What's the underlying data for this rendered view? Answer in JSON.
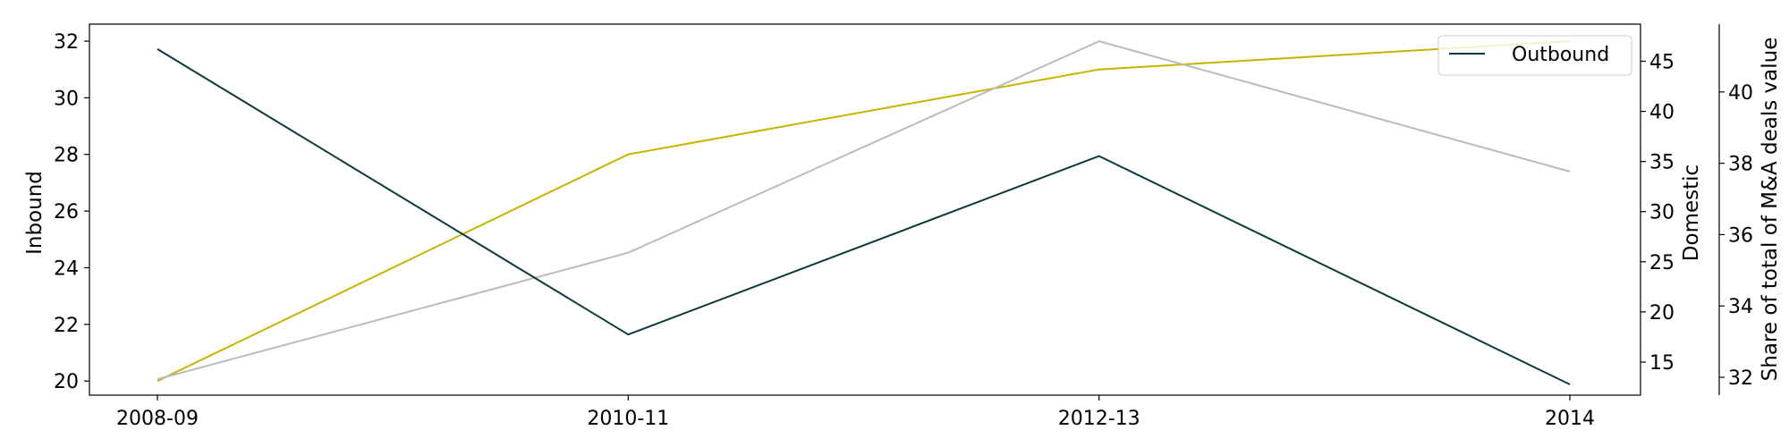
{
  "chart_data": {
    "type": "line",
    "categories": [
      "2008-09",
      "2010-11",
      "2012-13",
      "2014"
    ],
    "series": [
      {
        "name": "Inbound",
        "axis": "left",
        "color": "#c8b400",
        "values": [
          20,
          28,
          31,
          32
        ],
        "in_legend": false
      },
      {
        "name": "Domestic",
        "axis": "right1",
        "color": "#bbbbbb",
        "values": [
          13.3,
          25.9,
          47.0,
          34.0
        ],
        "in_legend": false
      },
      {
        "name": "Outbound",
        "axis": "right2",
        "color": "#0b3b3b",
        "values": [
          41.2,
          33.2,
          38.2,
          31.8
        ],
        "in_legend": true
      }
    ],
    "axes": {
      "left": {
        "label": "Inbound",
        "ylim": [
          19.5,
          32.6
        ],
        "ticks": [
          "20",
          "22",
          "24",
          "26",
          "28",
          "30",
          "32"
        ]
      },
      "right1": {
        "label": "Domestic",
        "ylim": [
          11.7,
          48.7
        ],
        "ticks": [
          "15",
          "20",
          "25",
          "30",
          "35",
          "40",
          "45"
        ]
      },
      "right2": {
        "label": "Share of total of M&A deals value",
        "ylim": [
          31.5,
          41.9
        ],
        "ticks": [
          "32",
          "34",
          "36",
          "38",
          "40"
        ]
      }
    },
    "legend": {
      "position": "top-right",
      "entries": [
        "Outbound"
      ]
    },
    "grid": false
  }
}
